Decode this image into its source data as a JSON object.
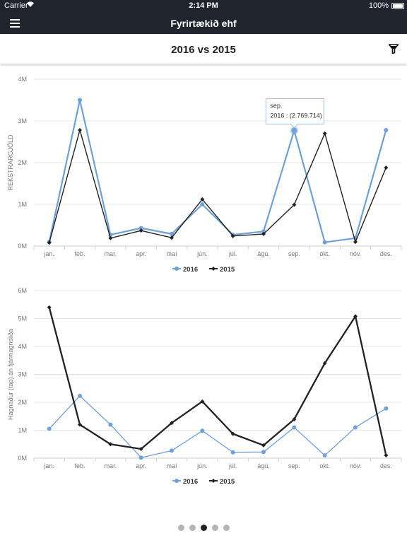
{
  "status_bar": {
    "carrier": "Carrier",
    "time": "2:14 PM",
    "battery": "100%"
  },
  "nav": {
    "title": "Fyrirtækið ehf",
    "menu_icon": "hamburger-icon"
  },
  "subheader": {
    "title": "2016 vs 2015",
    "filter_icon": "filter-icon"
  },
  "colors": {
    "series_2016": "#6fa0d8",
    "series_2015": "#222222",
    "grid": "#e6e6e6",
    "axis_text": "#777777"
  },
  "chart_data": [
    {
      "type": "line",
      "categories": [
        "jan.",
        "feb.",
        "mar.",
        "apr.",
        "maí",
        "jún.",
        "júl.",
        "ágú.",
        "sep.",
        "okt.",
        "nóv.",
        "des."
      ],
      "ylabel": "REKSTRARGJÖLD",
      "ylim": [
        0,
        4000000
      ],
      "yticks": [
        "0M",
        "1M",
        "2M",
        "3M",
        "4M"
      ],
      "grid": true,
      "legend": "bottom-center",
      "series": [
        {
          "name": "2016",
          "values": [
            100000,
            3500000,
            270000,
            430000,
            290000,
            1000000,
            270000,
            350000,
            2769714,
            90000,
            190000,
            2780000
          ]
        },
        {
          "name": "2015",
          "values": [
            80000,
            2780000,
            190000,
            370000,
            200000,
            1120000,
            240000,
            290000,
            990000,
            2700000,
            100000,
            1880000
          ]
        }
      ],
      "tooltip": {
        "label": "sep.",
        "value_text": "2016 : (2.769.714)",
        "series_index": 0,
        "point_index": 8
      }
    },
    {
      "type": "line",
      "categories": [
        "jan.",
        "feb.",
        "mar.",
        "apr.",
        "maí",
        "jún.",
        "júl.",
        "ágú.",
        "sep.",
        "okt.",
        "nóv.",
        "des."
      ],
      "ylabel": "Hagnaður (tap) án fjármagnsliða",
      "ylim": [
        0,
        6000000
      ],
      "yticks": [
        "0M",
        "1M",
        "2M",
        "3M",
        "4M",
        "5M",
        "6M"
      ],
      "grid": true,
      "legend": "bottom-center",
      "series": [
        {
          "name": "2016",
          "values": [
            1050000,
            2230000,
            1200000,
            20000,
            270000,
            980000,
            210000,
            220000,
            1100000,
            100000,
            1100000,
            1780000
          ]
        },
        {
          "name": "2015",
          "values": [
            5400000,
            1200000,
            500000,
            330000,
            1260000,
            2030000,
            870000,
            460000,
            1390000,
            3400000,
            5080000,
            100000
          ]
        }
      ]
    }
  ],
  "pager": {
    "count": 5,
    "active": 2
  }
}
